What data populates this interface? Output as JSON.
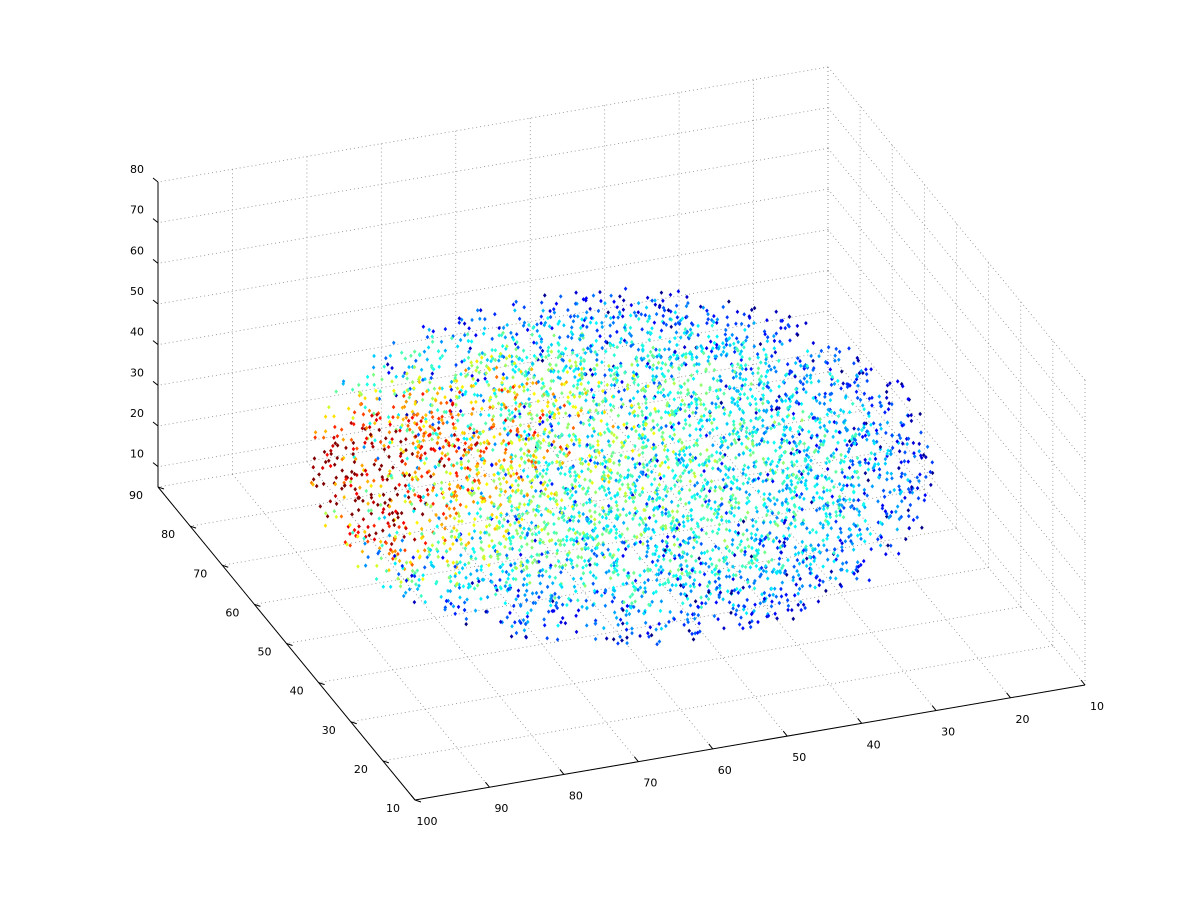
{
  "chart_data": {
    "type": "scatter",
    "title": "",
    "xlabel": "",
    "ylabel": "",
    "zlabel": "",
    "grid": true,
    "colormap": "jet",
    "marker": "diamond",
    "x_ticks": [
      "10",
      "20",
      "30",
      "40",
      "50",
      "60",
      "70",
      "80",
      "90",
      "100"
    ],
    "y_ticks": [
      "10",
      "20",
      "30",
      "40",
      "50",
      "60",
      "70",
      "80",
      "90"
    ],
    "z_ticks": [
      "10",
      "20",
      "30",
      "40",
      "50",
      "60",
      "70",
      "80"
    ],
    "xlim": [
      10,
      100
    ],
    "ylim": [
      10,
      90
    ],
    "zlim": [
      5,
      80
    ],
    "volume": {
      "x_range": [
        15,
        95
      ],
      "y_range": [
        15,
        85
      ],
      "z_range": [
        8,
        60
      ],
      "hot_region": {
        "x": 88,
        "y": 60,
        "z": 30,
        "level": 0.95
      },
      "warm_region": {
        "x": 72,
        "y": 52,
        "z": 50,
        "level": 0.6
      }
    }
  },
  "colors": {
    "background": "#ffffff",
    "axis": "#000000",
    "grid": "#8a8a8a",
    "jet_low": "#00007f",
    "jet_high": "#7f0000"
  }
}
